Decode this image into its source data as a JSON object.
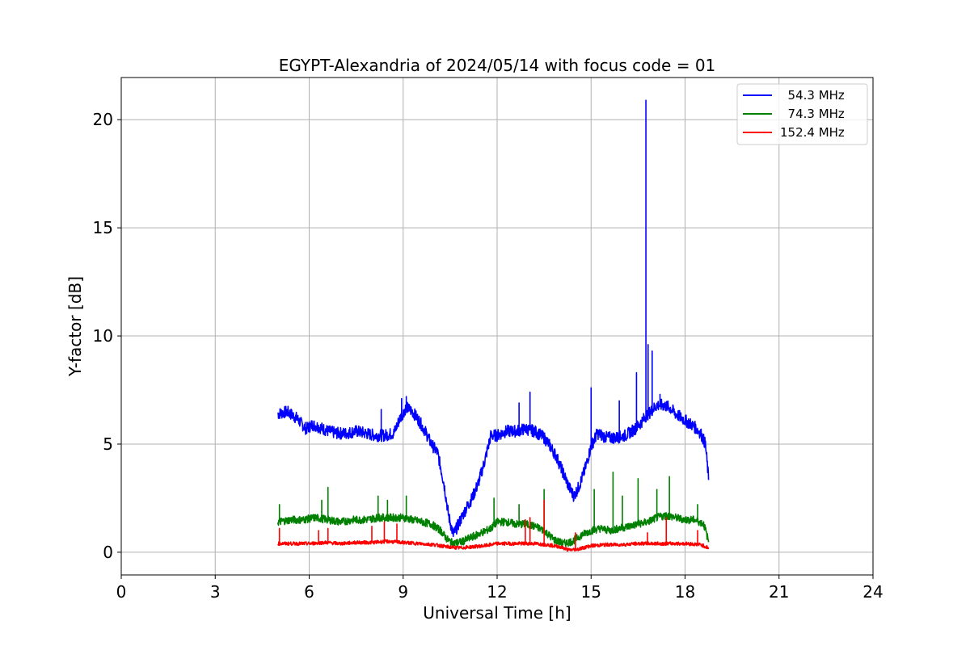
{
  "chart_data": {
    "type": "line",
    "title": "EGYPT-Alexandria of 2024/05/14 with focus code = 01",
    "xlabel": "Universal Time [h]",
    "ylabel": "Y-factor [dB]",
    "xlim": [
      0,
      24
    ],
    "ylim": [
      -1.05,
      21.95
    ],
    "xticks": [
      0,
      3,
      6,
      9,
      12,
      15,
      18,
      21,
      24
    ],
    "yticks": [
      0,
      5,
      10,
      15,
      20
    ],
    "grid": true,
    "legend_position": "top-right",
    "series": [
      {
        "name": "  54.3 MHz",
        "color": "#0000ff",
        "x": [
          5.0,
          5.3,
          5.6,
          5.9,
          6.1,
          6.3,
          6.6,
          6.9,
          7.2,
          7.5,
          7.8,
          8.1,
          8.4,
          8.7,
          8.9,
          9.1,
          9.3,
          9.5,
          9.7,
          9.9,
          10.1,
          10.3,
          10.45,
          10.6,
          10.8,
          11.0,
          11.2,
          11.4,
          11.6,
          11.8,
          12.0,
          12.3,
          12.6,
          12.9,
          13.2,
          13.5,
          13.7,
          13.9,
          14.1,
          14.3,
          14.45,
          14.6,
          14.8,
          15.0,
          15.2,
          15.5,
          15.8,
          16.1,
          16.4,
          16.6,
          16.75,
          16.9,
          17.1,
          17.3,
          17.5,
          17.7,
          17.9,
          18.1,
          18.3,
          18.5,
          18.65,
          18.75
        ],
        "y": [
          6.4,
          6.5,
          6.2,
          5.7,
          5.9,
          5.8,
          5.6,
          5.5,
          5.5,
          5.6,
          5.5,
          5.4,
          5.4,
          5.5,
          6.2,
          6.7,
          6.5,
          6.1,
          5.6,
          5.0,
          4.6,
          3.2,
          1.7,
          0.8,
          1.4,
          2.0,
          2.5,
          3.2,
          4.2,
          5.4,
          5.4,
          5.6,
          5.6,
          5.7,
          5.6,
          5.3,
          4.9,
          4.4,
          3.7,
          3.0,
          2.6,
          3.0,
          3.8,
          4.9,
          5.5,
          5.3,
          5.3,
          5.4,
          5.7,
          6.0,
          6.3,
          6.5,
          6.8,
          6.8,
          6.7,
          6.4,
          6.2,
          6.0,
          5.8,
          5.5,
          5.0,
          3.4
        ],
        "spikes": [
          [
            8.3,
            6.6
          ],
          [
            8.95,
            7.1
          ],
          [
            9.1,
            7.2
          ],
          [
            12.7,
            6.9
          ],
          [
            13.05,
            7.4
          ],
          [
            15.0,
            7.6
          ],
          [
            15.9,
            7.0
          ],
          [
            16.45,
            8.3
          ],
          [
            16.75,
            20.9
          ],
          [
            16.82,
            9.6
          ],
          [
            16.95,
            9.3
          ],
          [
            17.2,
            7.3
          ]
        ]
      },
      {
        "name": "  74.3 MHz",
        "color": "#008000",
        "x": [
          5.0,
          5.4,
          5.8,
          6.2,
          6.6,
          7.0,
          7.4,
          7.8,
          8.2,
          8.6,
          9.0,
          9.3,
          9.6,
          9.9,
          10.2,
          10.4,
          10.6,
          10.9,
          11.2,
          11.5,
          11.8,
          12.0,
          12.3,
          12.6,
          12.9,
          13.2,
          13.5,
          13.8,
          14.1,
          14.4,
          14.7,
          15.0,
          15.3,
          15.6,
          15.9,
          16.2,
          16.5,
          16.8,
          17.1,
          17.4,
          17.7,
          18.0,
          18.3,
          18.6,
          18.75
        ],
        "y": [
          1.4,
          1.5,
          1.5,
          1.6,
          1.5,
          1.4,
          1.5,
          1.5,
          1.6,
          1.6,
          1.6,
          1.5,
          1.4,
          1.3,
          1.0,
          0.6,
          0.4,
          0.5,
          0.7,
          0.9,
          1.1,
          1.4,
          1.4,
          1.3,
          1.3,
          1.2,
          1.0,
          0.6,
          0.4,
          0.5,
          0.8,
          1.0,
          1.1,
          1.0,
          1.1,
          1.2,
          1.3,
          1.4,
          1.6,
          1.7,
          1.6,
          1.5,
          1.5,
          1.3,
          0.5
        ],
        "spikes": [
          [
            5.05,
            2.2
          ],
          [
            6.4,
            2.4
          ],
          [
            6.6,
            3.0
          ],
          [
            8.2,
            2.6
          ],
          [
            8.5,
            2.4
          ],
          [
            9.1,
            2.6
          ],
          [
            11.9,
            2.5
          ],
          [
            12.7,
            2.2
          ],
          [
            13.5,
            2.9
          ],
          [
            15.1,
            2.9
          ],
          [
            15.7,
            3.7
          ],
          [
            16.0,
            2.6
          ],
          [
            16.5,
            3.4
          ],
          [
            17.1,
            2.9
          ],
          [
            17.5,
            3.5
          ],
          [
            18.4,
            2.2
          ]
        ]
      },
      {
        "name": "152.4 MHz",
        "color": "#ff0000",
        "x": [
          5.0,
          5.5,
          6.0,
          6.5,
          7.0,
          7.5,
          8.0,
          8.5,
          9.0,
          9.5,
          10.0,
          10.4,
          10.8,
          11.2,
          11.6,
          12.0,
          12.4,
          12.8,
          13.2,
          13.6,
          14.0,
          14.3,
          14.6,
          15.0,
          15.5,
          16.0,
          16.5,
          17.0,
          17.5,
          18.0,
          18.5,
          18.75
        ],
        "y": [
          0.4,
          0.4,
          0.4,
          0.45,
          0.4,
          0.45,
          0.45,
          0.5,
          0.45,
          0.4,
          0.35,
          0.25,
          0.2,
          0.25,
          0.3,
          0.4,
          0.4,
          0.4,
          0.4,
          0.35,
          0.25,
          0.1,
          0.15,
          0.3,
          0.35,
          0.35,
          0.4,
          0.4,
          0.4,
          0.4,
          0.35,
          0.2
        ],
        "spikes": [
          [
            5.05,
            1.1
          ],
          [
            6.3,
            1.0
          ],
          [
            6.6,
            1.1
          ],
          [
            8.0,
            1.2
          ],
          [
            8.4,
            1.4
          ],
          [
            8.8,
            1.3
          ],
          [
            12.9,
            1.5
          ],
          [
            13.05,
            1.6
          ],
          [
            13.5,
            2.4
          ],
          [
            14.5,
            0.9
          ],
          [
            16.8,
            0.9
          ],
          [
            17.4,
            1.6
          ],
          [
            18.4,
            1.0
          ]
        ]
      }
    ]
  }
}
